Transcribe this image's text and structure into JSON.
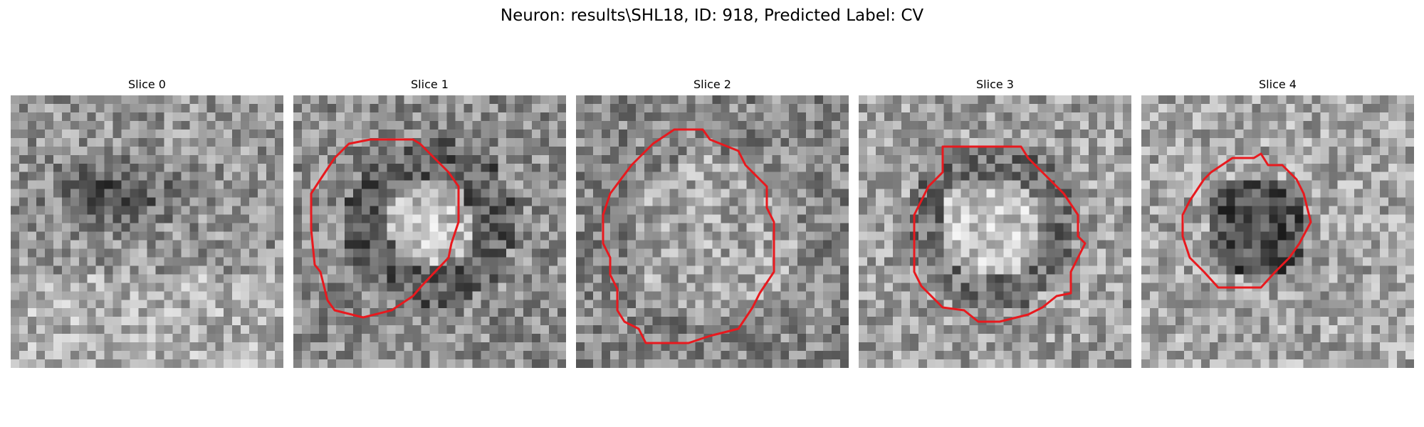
{
  "figure": {
    "title": "Neuron: results\\SHL18, ID: 918, Predicted Label: CV",
    "contour_color": "#e8191e"
  },
  "panels": [
    {
      "title": "Slice 0",
      "content": "noisy grayscale patch with darker horizontal band in upper middle, no contour",
      "contour": false
    },
    {
      "title": "Slice 1",
      "content": "bright round core with darker ring, red outline",
      "contour": true
    },
    {
      "title": "Slice 2",
      "content": "faint round region, large red outline",
      "contour": true
    },
    {
      "title": "Slice 3",
      "content": "bright round core, red outline",
      "contour": true
    },
    {
      "title": "Slice 4",
      "content": "small dark round region, small red outline",
      "contour": true
    }
  ]
}
